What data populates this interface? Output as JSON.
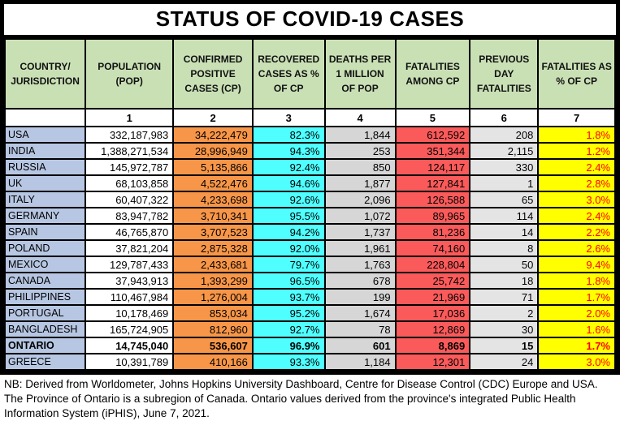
{
  "title": "STATUS OF COVID-19 CASES",
  "table": {
    "columns": [
      {
        "key": "country",
        "cls": "c-country",
        "label": "COUNTRY/ JURISDICTION",
        "num": ""
      },
      {
        "key": "population",
        "cls": "c-pop",
        "label": "POPULATION (POP)",
        "num": "1"
      },
      {
        "key": "confirmed",
        "cls": "c-confirmed",
        "label": "CONFIRMED POSITIVE CASES (CP)",
        "num": "2"
      },
      {
        "key": "recovered",
        "cls": "c-recovered",
        "label": "RECOVERED CASES AS % OF CP",
        "num": "3"
      },
      {
        "key": "deaths_per_million",
        "cls": "c-deaths",
        "label": "DEATHS PER 1 MILLION OF POP",
        "num": "4"
      },
      {
        "key": "fatalities",
        "cls": "c-among",
        "label": "FATALITIES AMONG CP",
        "num": "5"
      },
      {
        "key": "prev_day",
        "cls": "c-prev",
        "label": "PREVIOUS DAY FATALITIES",
        "num": "6"
      },
      {
        "key": "fatality_pct",
        "cls": "c-pct",
        "label": "FATALITIES AS % OF CP",
        "num": "7"
      }
    ],
    "rows": [
      {
        "country": "USA",
        "population": "332,187,983",
        "confirmed": "34,222,479",
        "recovered": "82.3%",
        "deaths_per_million": "1,844",
        "fatalities": "612,592",
        "prev_day": "208",
        "fatality_pct": "1.8%",
        "bold": false
      },
      {
        "country": "INDIA",
        "population": "1,388,271,534",
        "confirmed": "28,996,949",
        "recovered": "94.3%",
        "deaths_per_million": "253",
        "fatalities": "351,344",
        "prev_day": "2,115",
        "fatality_pct": "1.2%",
        "bold": false
      },
      {
        "country": "RUSSIA",
        "population": "145,972,787",
        "confirmed": "5,135,866",
        "recovered": "92.4%",
        "deaths_per_million": "850",
        "fatalities": "124,117",
        "prev_day": "330",
        "fatality_pct": "2.4%",
        "bold": false
      },
      {
        "country": "UK",
        "population": "68,103,858",
        "confirmed": "4,522,476",
        "recovered": "94.6%",
        "deaths_per_million": "1,877",
        "fatalities": "127,841",
        "prev_day": "1",
        "fatality_pct": "2.8%",
        "bold": false
      },
      {
        "country": "ITALY",
        "population": "60,407,322",
        "confirmed": "4,233,698",
        "recovered": "92.6%",
        "deaths_per_million": "2,096",
        "fatalities": "126,588",
        "prev_day": "65",
        "fatality_pct": "3.0%",
        "bold": false
      },
      {
        "country": "GERMANY",
        "population": "83,947,782",
        "confirmed": "3,710,341",
        "recovered": "95.5%",
        "deaths_per_million": "1,072",
        "fatalities": "89,965",
        "prev_day": "114",
        "fatality_pct": "2.4%",
        "bold": false
      },
      {
        "country": "SPAIN",
        "population": "46,765,870",
        "confirmed": "3,707,523",
        "recovered": "94.2%",
        "deaths_per_million": "1,737",
        "fatalities": "81,236",
        "prev_day": "14",
        "fatality_pct": "2.2%",
        "bold": false
      },
      {
        "country": "POLAND",
        "population": "37,821,204",
        "confirmed": "2,875,328",
        "recovered": "92.0%",
        "deaths_per_million": "1,961",
        "fatalities": "74,160",
        "prev_day": "8",
        "fatality_pct": "2.6%",
        "bold": false
      },
      {
        "country": "MEXICO",
        "population": "129,787,433",
        "confirmed": "2,433,681",
        "recovered": "79.7%",
        "deaths_per_million": "1,763",
        "fatalities": "228,804",
        "prev_day": "50",
        "fatality_pct": "9.4%",
        "bold": false
      },
      {
        "country": "CANADA",
        "population": "37,943,913",
        "confirmed": "1,393,299",
        "recovered": "96.5%",
        "deaths_per_million": "678",
        "fatalities": "25,742",
        "prev_day": "18",
        "fatality_pct": "1.8%",
        "bold": false
      },
      {
        "country": "PHILIPPINES",
        "population": "110,467,984",
        "confirmed": "1,276,004",
        "recovered": "93.7%",
        "deaths_per_million": "199",
        "fatalities": "21,969",
        "prev_day": "71",
        "fatality_pct": "1.7%",
        "bold": false
      },
      {
        "country": "PORTUGAL",
        "population": "10,178,469",
        "confirmed": "853,034",
        "recovered": "95.2%",
        "deaths_per_million": "1,674",
        "fatalities": "17,036",
        "prev_day": "2",
        "fatality_pct": "2.0%",
        "bold": false
      },
      {
        "country": "BANGLADESH",
        "population": "165,724,905",
        "confirmed": "812,960",
        "recovered": "92.7%",
        "deaths_per_million": "78",
        "fatalities": "12,869",
        "prev_day": "30",
        "fatality_pct": "1.6%",
        "bold": false
      },
      {
        "country": "ONTARIO",
        "population": "14,745,040",
        "confirmed": "536,607",
        "recovered": "96.9%",
        "deaths_per_million": "601",
        "fatalities": "8,869",
        "prev_day": "15",
        "fatality_pct": "1.7%",
        "bold": true
      },
      {
        "country": "GREECE",
        "population": "10,391,789",
        "confirmed": "410,166",
        "recovered": "93.3%",
        "deaths_per_million": "1,184",
        "fatalities": "12,301",
        "prev_day": "24",
        "fatality_pct": "3.0%",
        "bold": false
      }
    ]
  },
  "footnote": "NB: Derived from Worldometer, Johns Hopkins University Dashboard, Centre for Disease Control (CDC) Europe and USA. The Province of Ontario is a subregion of Canada. Ontario values derived from the province's integrated Public Health Information System (iPHIS), June 7, 2021.",
  "colors": {
    "header_green": "#C9E0B5",
    "country_blue": "#B7C7E3",
    "confirmed_orange": "#F79648",
    "recovered_cyan": "#4FFFFF",
    "deaths_gray": "#D6D6D6",
    "fatalities_red": "#FA5A5A",
    "prev_day_gray": "#E4E4E4",
    "pct_yellow": "#FFFF00",
    "pct_text_red": "#FF0000"
  }
}
